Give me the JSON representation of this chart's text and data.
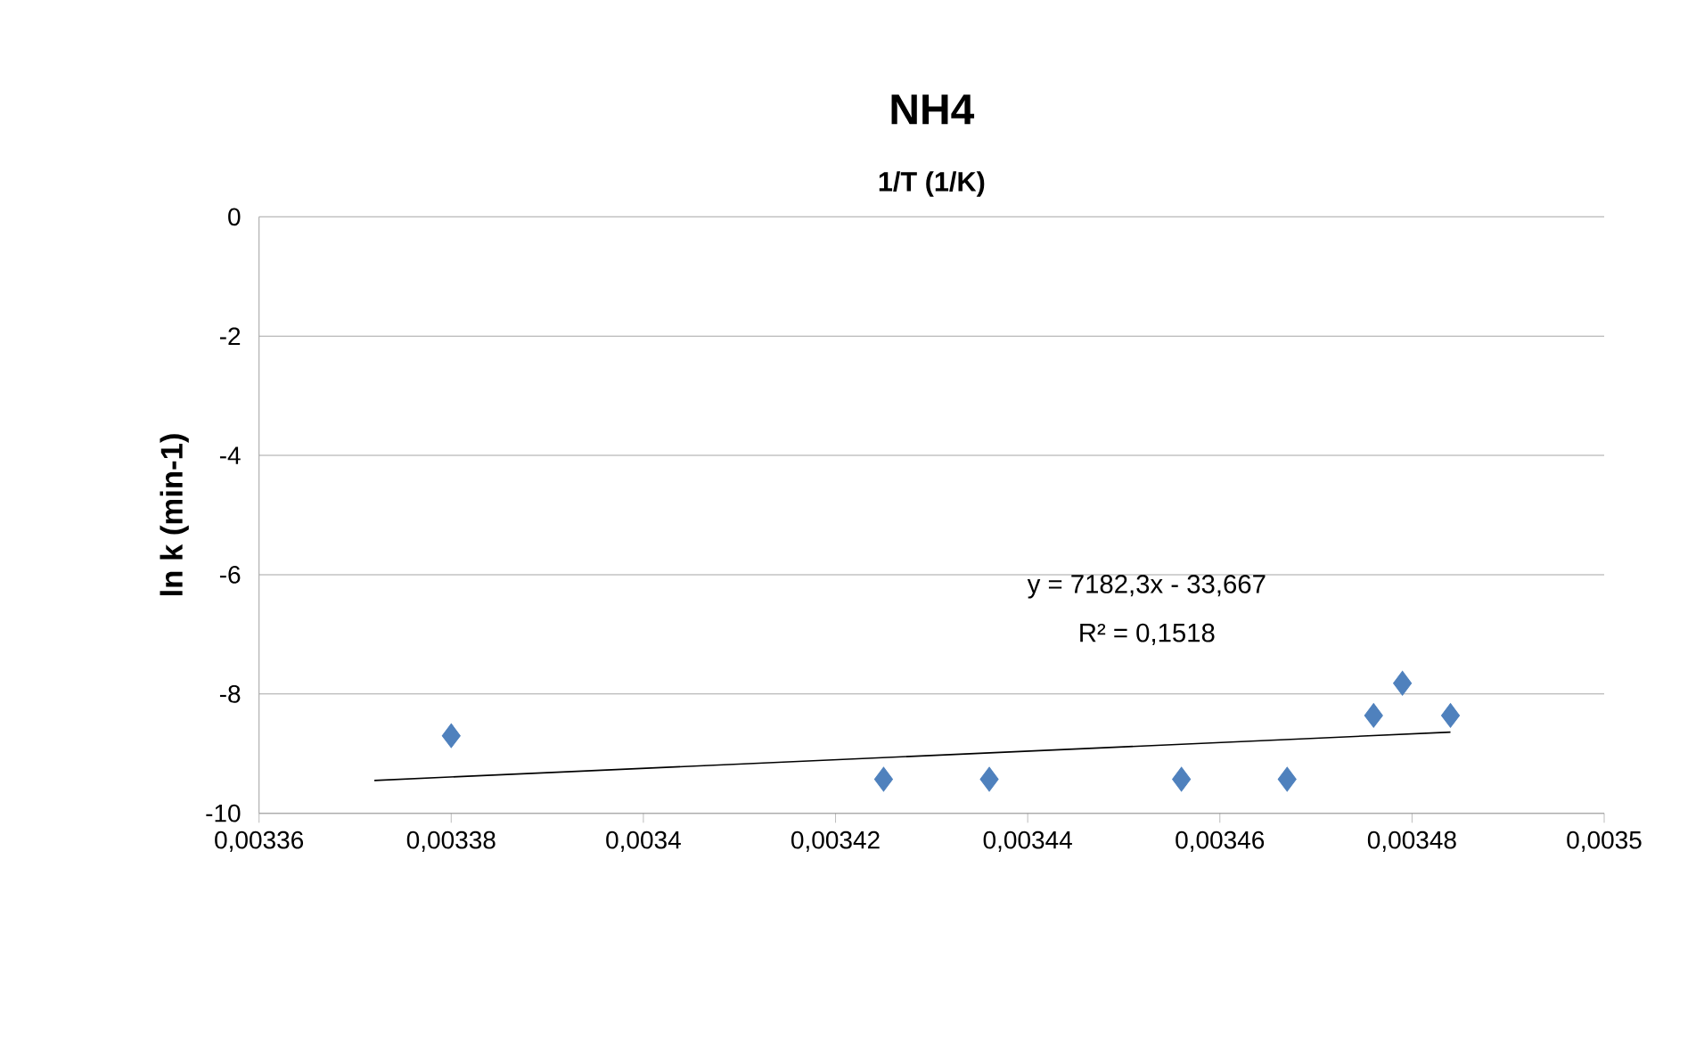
{
  "chart_data": {
    "type": "scatter",
    "title": "NH4",
    "subtitle": "1/T (1/K)",
    "ylabel": "ln k (min-1)",
    "series": [
      {
        "color": "#4f81bd",
        "marker": "diamond",
        "x": [
          0.00338,
          0.003425,
          0.003436,
          0.003456,
          0.003467,
          0.003476,
          0.003479,
          0.003484
        ],
        "values": [
          -8.7,
          -9.43,
          -9.43,
          -9.43,
          -9.43,
          -8.36,
          -7.82,
          -8.36
        ]
      },
      {
        "type": "line",
        "color": "#000000",
        "marker": "none",
        "x": [
          0.003372,
          0.003484
        ],
        "values": [
          -9.45,
          -8.64
        ]
      }
    ],
    "annotations": [
      "y = 7182,3x - 33,667",
      "R² = 0,1518"
    ],
    "xlim": [
      0.00336,
      0.0035
    ],
    "ylim": [
      -10,
      0
    ],
    "xticks": [
      {
        "value": 0.00336,
        "label": "0,00336"
      },
      {
        "value": 0.00338,
        "label": "0,00338"
      },
      {
        "value": 0.0034,
        "label": "0,0034"
      },
      {
        "value": 0.00342,
        "label": "0,00342"
      },
      {
        "value": 0.00344,
        "label": "0,00344"
      },
      {
        "value": 0.00346,
        "label": "0,00346"
      },
      {
        "value": 0.00348,
        "label": "0,00348"
      },
      {
        "value": 0.0035,
        "label": "0,0035"
      }
    ],
    "yticks": [
      0,
      -2,
      -4,
      -6,
      -8,
      -10
    ],
    "grid": "y"
  }
}
